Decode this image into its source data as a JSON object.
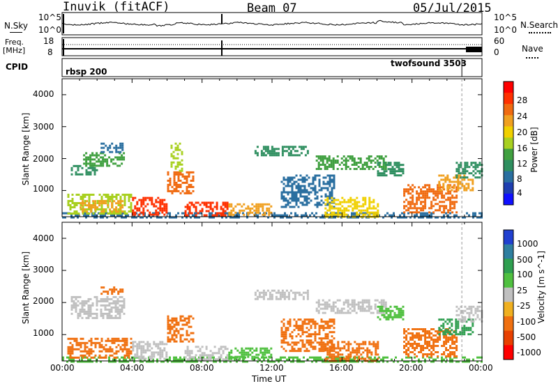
{
  "header": {
    "radar": "Inuvik (fitACF)",
    "beam": "Beam 07",
    "date": "05/Jul/2015"
  },
  "status_panels": {
    "nsky_label": "N.Sky",
    "nsky_ticks": [
      "10^5",
      "10^0"
    ],
    "nsearch_label": "N.Search",
    "nsearch_ticks": [
      "10^5",
      "10^0"
    ],
    "freq_label": "Freq.",
    "freq_unit": "[MHz]",
    "freq_ticks": [
      "18",
      "8"
    ],
    "nave_label": "Nave",
    "nave_ticks": [
      "60",
      "0"
    ],
    "cpid_label": "CPID",
    "programs": [
      {
        "name": "rbsp 200",
        "start_hour": 0,
        "end_hour": 22.85
      },
      {
        "name": "twofsound 3503",
        "start_hour": 22.85,
        "end_hour": 24
      }
    ]
  },
  "axes": {
    "ylabel": "Slant Range [km]",
    "yticks": [
      "4000",
      "3000",
      "2000",
      "1000"
    ],
    "xticks": [
      "00:00",
      "04:00",
      "08:00",
      "12:00",
      "16:00",
      "20:00",
      "00:00"
    ],
    "xlabel": "Time UT"
  },
  "colorbars": {
    "power": {
      "label": "Power [dB]",
      "ticks": [
        "28",
        "24",
        "20",
        "16",
        "12",
        "8",
        "4"
      ],
      "colors": [
        "#ff0000",
        "#ff3000",
        "#f06a10",
        "#f0a020",
        "#f0d000",
        "#a8d020",
        "#40a040",
        "#2f8f60",
        "#2a6fa0",
        "#1f3fb0",
        "#1010ff"
      ]
    },
    "velocity": {
      "label": "Velocity [m s^-1]",
      "ticks": [
        "1000",
        "500",
        "100",
        "25",
        "-25",
        "-100",
        "-500",
        "-1000"
      ],
      "colors": [
        "#2040d0",
        "#2f7fa0",
        "#2f9f50",
        "#50c040",
        "#c0c0c0",
        "#f0b020",
        "#f07010",
        "#e84000",
        "#ff0000"
      ]
    }
  },
  "chart_data": [
    {
      "type": "heatmap",
      "title": "Power",
      "xlabel": "Time UT",
      "ylabel": "Slant Range [km]",
      "xlim": [
        0,
        24
      ],
      "ylim": [
        180,
        4500
      ],
      "value_label": "Power [dB]",
      "value_range": [
        0,
        30
      ],
      "regions": [
        {
          "t0": 0.0,
          "t1": 24.0,
          "r0": 180,
          "r1": 320,
          "value": 6
        },
        {
          "t0": 0.3,
          "t1": 4.0,
          "r0": 300,
          "r1": 900,
          "value": 14
        },
        {
          "t0": 1.0,
          "t1": 3.5,
          "r0": 350,
          "r1": 700,
          "value": 22
        },
        {
          "t0": 0.5,
          "t1": 2.0,
          "r0": 1500,
          "r1": 1800,
          "value": 9
        },
        {
          "t0": 1.2,
          "t1": 3.5,
          "r0": 1800,
          "r1": 2200,
          "value": 12
        },
        {
          "t0": 2.2,
          "t1": 3.5,
          "r0": 2200,
          "r1": 2500,
          "value": 7
        },
        {
          "t0": 4.0,
          "t1": 6.0,
          "r0": 220,
          "r1": 800,
          "value": 28
        },
        {
          "t0": 6.0,
          "t1": 7.5,
          "r0": 900,
          "r1": 1600,
          "value": 24
        },
        {
          "t0": 6.2,
          "t1": 6.8,
          "r0": 1600,
          "r1": 2500,
          "value": 14
        },
        {
          "t0": 7.0,
          "t1": 9.5,
          "r0": 220,
          "r1": 650,
          "value": 27
        },
        {
          "t0": 9.5,
          "t1": 12.0,
          "r0": 220,
          "r1": 600,
          "value": 20
        },
        {
          "t0": 11.0,
          "t1": 14.0,
          "r0": 2100,
          "r1": 2400,
          "value": 8
        },
        {
          "t0": 12.5,
          "t1": 15.5,
          "r0": 500,
          "r1": 1500,
          "value": 7
        },
        {
          "t0": 14.5,
          "t1": 18.5,
          "r0": 1700,
          "r1": 2100,
          "value": 12
        },
        {
          "t0": 15.0,
          "t1": 18.0,
          "r0": 200,
          "r1": 800,
          "value": 18
        },
        {
          "t0": 18.0,
          "t1": 19.5,
          "r0": 1500,
          "r1": 1900,
          "value": 9
        },
        {
          "t0": 19.5,
          "t1": 22.5,
          "r0": 300,
          "r1": 1200,
          "value": 24
        },
        {
          "t0": 21.5,
          "t1": 23.5,
          "r0": 1000,
          "r1": 1500,
          "value": 22
        },
        {
          "t0": 22.5,
          "t1": 24.0,
          "r0": 1400,
          "r1": 1900,
          "value": 10
        }
      ]
    },
    {
      "type": "heatmap",
      "title": "Velocity",
      "xlabel": "Time UT",
      "ylabel": "Slant Range [km]",
      "xlim": [
        0,
        24
      ],
      "ylim": [
        180,
        4500
      ],
      "value_label": "Velocity [m s^-1]",
      "value_range": [
        -1000,
        1000
      ],
      "regions": [
        {
          "t0": 0.0,
          "t1": 24.0,
          "r0": 180,
          "r1": 320,
          "value": 60
        },
        {
          "t0": 0.3,
          "t1": 4.0,
          "r0": 300,
          "r1": 900,
          "value": -300
        },
        {
          "t0": 0.5,
          "t1": 3.5,
          "r0": 1500,
          "r1": 2200,
          "value": 10
        },
        {
          "t0": 2.2,
          "t1": 3.5,
          "r0": 2300,
          "r1": 2500,
          "value": -150
        },
        {
          "t0": 4.0,
          "t1": 6.0,
          "r0": 220,
          "r1": 800,
          "value": 15
        },
        {
          "t0": 6.0,
          "t1": 7.5,
          "r0": 800,
          "r1": 1600,
          "value": -400
        },
        {
          "t0": 7.0,
          "t1": 9.5,
          "r0": 220,
          "r1": 650,
          "value": 5
        },
        {
          "t0": 9.5,
          "t1": 12.0,
          "r0": 220,
          "r1": 600,
          "value": 70
        },
        {
          "t0": 11.0,
          "t1": 14.0,
          "r0": 2100,
          "r1": 2400,
          "value": 0
        },
        {
          "t0": 12.5,
          "t1": 15.5,
          "r0": 500,
          "r1": 1500,
          "value": -200
        },
        {
          "t0": 14.5,
          "t1": 18.5,
          "r0": 1700,
          "r1": 2100,
          "value": 10
        },
        {
          "t0": 15.0,
          "t1": 18.0,
          "r0": 200,
          "r1": 800,
          "value": -150
        },
        {
          "t0": 18.0,
          "t1": 19.5,
          "r0": 1500,
          "r1": 1900,
          "value": 40
        },
        {
          "t0": 19.5,
          "t1": 22.5,
          "r0": 300,
          "r1": 1200,
          "value": -400
        },
        {
          "t0": 21.5,
          "t1": 23.5,
          "r0": 1000,
          "r1": 1500,
          "value": 300
        },
        {
          "t0": 22.5,
          "t1": 24.0,
          "r0": 1400,
          "r1": 1900,
          "value": 20
        }
      ]
    }
  ]
}
